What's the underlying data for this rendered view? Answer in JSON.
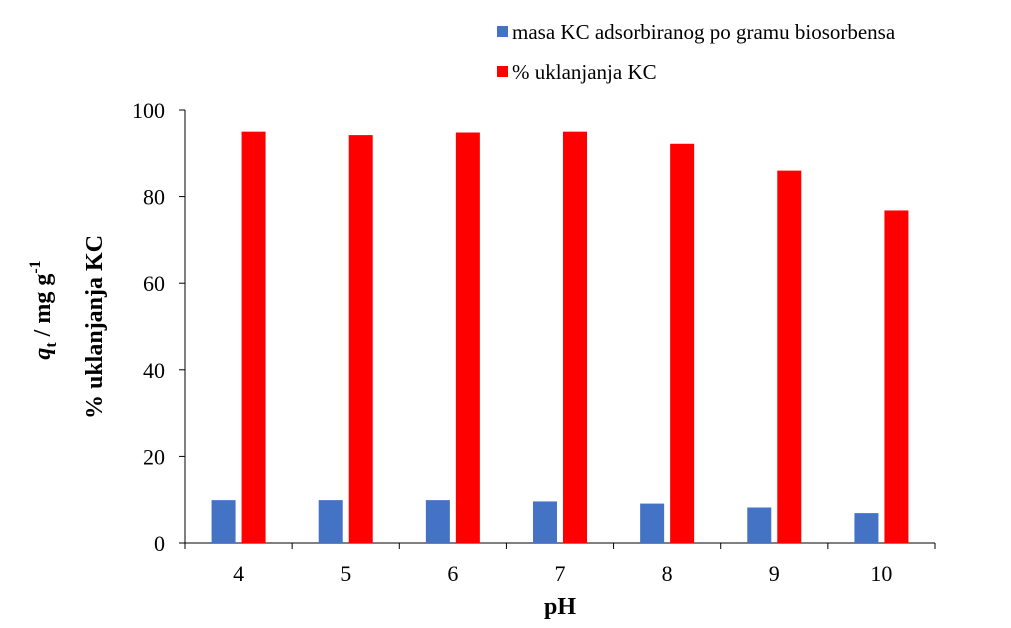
{
  "chart_data": {
    "type": "bar",
    "x_label": "pH",
    "y_label_primary": [
      "q",
      "t",
      " / mg g",
      "-1"
    ],
    "y_label_secondary": "% uklanjanja KC",
    "categories": [
      "4",
      "5",
      "6",
      "7",
      "8",
      "9",
      "10"
    ],
    "series": [
      {
        "name": "masa KC adsorbiranog po gramu biosorbensa",
        "color": "#4472c4",
        "values": [
          9.9,
          9.9,
          9.9,
          9.6,
          9.1,
          8.2,
          6.9
        ]
      },
      {
        "name": "% uklanjanja KC",
        "color": "#ff0000",
        "values": [
          95,
          94.2,
          94.8,
          95,
          92.2,
          86,
          76.8
        ]
      }
    ],
    "ylim": [
      0,
      100
    ],
    "yticks": [
      0,
      20,
      40,
      60,
      80,
      100
    ],
    "grid": false,
    "legend": "top-right"
  }
}
